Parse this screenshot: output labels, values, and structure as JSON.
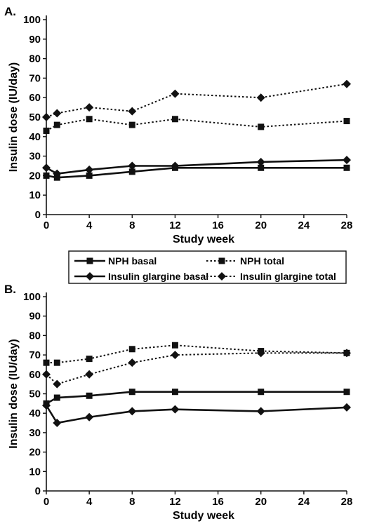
{
  "chart_data": [
    {
      "type": "line",
      "panel_label": "A.",
      "xlabel": "Study week",
      "ylabel": "Insulin dose (IU/day)",
      "xlim": [
        0,
        28
      ],
      "ylim": [
        0,
        100
      ],
      "x_ticks": [
        0,
        4,
        8,
        12,
        16,
        20,
        24,
        28
      ],
      "y_ticks": [
        0,
        10,
        20,
        30,
        40,
        50,
        60,
        70,
        80,
        90,
        100
      ],
      "series": [
        {
          "name": "NPH basal",
          "style": "solid",
          "marker": "square",
          "points": [
            [
              0,
              20
            ],
            [
              1,
              19
            ],
            [
              4,
              20
            ],
            [
              8,
              22
            ],
            [
              12,
              24
            ],
            [
              20,
              24
            ],
            [
              28,
              24
            ]
          ]
        },
        {
          "name": "NPH total",
          "style": "dotted",
          "marker": "square",
          "points": [
            [
              0,
              43
            ],
            [
              1,
              46
            ],
            [
              4,
              49
            ],
            [
              8,
              46
            ],
            [
              12,
              49
            ],
            [
              20,
              45
            ],
            [
              28,
              48
            ]
          ]
        },
        {
          "name": "Insulin glargine basal",
          "style": "solid",
          "marker": "diamond",
          "points": [
            [
              0,
              24
            ],
            [
              1,
              21
            ],
            [
              4,
              23
            ],
            [
              8,
              25
            ],
            [
              12,
              25
            ],
            [
              20,
              27
            ],
            [
              28,
              28
            ]
          ]
        },
        {
          "name": "Insulin glargine total",
          "style": "dotted",
          "marker": "diamond",
          "points": [
            [
              0,
              50
            ],
            [
              1,
              52
            ],
            [
              4,
              55
            ],
            [
              8,
              53
            ],
            [
              12,
              62
            ],
            [
              20,
              60
            ],
            [
              28,
              67
            ]
          ]
        }
      ]
    },
    {
      "type": "line",
      "panel_label": "B.",
      "xlabel": "Study week",
      "ylabel": "Insulin dose (IU/day)",
      "xlim": [
        0,
        28
      ],
      "ylim": [
        0,
        100
      ],
      "x_ticks": [
        0,
        4,
        8,
        12,
        16,
        20,
        24,
        28
      ],
      "y_ticks": [
        0,
        10,
        20,
        30,
        40,
        50,
        60,
        70,
        80,
        90,
        100
      ],
      "series": [
        {
          "name": "NPH basal",
          "style": "solid",
          "marker": "square",
          "points": [
            [
              0,
              45
            ],
            [
              1,
              48
            ],
            [
              4,
              49
            ],
            [
              8,
              51
            ],
            [
              12,
              51
            ],
            [
              20,
              51
            ],
            [
              28,
              51
            ]
          ]
        },
        {
          "name": "NPH total",
          "style": "dotted",
          "marker": "square",
          "points": [
            [
              0,
              66
            ],
            [
              1,
              66
            ],
            [
              4,
              68
            ],
            [
              8,
              73
            ],
            [
              12,
              75
            ],
            [
              20,
              72
            ],
            [
              28,
              71
            ]
          ]
        },
        {
          "name": "Insulin glargine basal",
          "style": "solid",
          "marker": "diamond",
          "points": [
            [
              0,
              44
            ],
            [
              1,
              35
            ],
            [
              4,
              38
            ],
            [
              8,
              41
            ],
            [
              12,
              42
            ],
            [
              20,
              41
            ],
            [
              28,
              43
            ]
          ]
        },
        {
          "name": "Insulin glargine total",
          "style": "dotted",
          "marker": "diamond",
          "points": [
            [
              0,
              60
            ],
            [
              1,
              55
            ],
            [
              4,
              60
            ],
            [
              8,
              66
            ],
            [
              12,
              70
            ],
            [
              20,
              71
            ],
            [
              28,
              71
            ]
          ]
        }
      ]
    }
  ],
  "legend": {
    "placement": "between panels",
    "entries": [
      {
        "label": "NPH basal",
        "style": "solid",
        "marker": "square"
      },
      {
        "label": "NPH total",
        "style": "dotted",
        "marker": "square"
      },
      {
        "label": "Insulin glargine basal",
        "style": "solid",
        "marker": "diamond"
      },
      {
        "label": "Insulin glargine total",
        "style": "dotted",
        "marker": "diamond"
      }
    ]
  },
  "colors": {
    "ink": "#111111",
    "background": "#ffffff"
  }
}
